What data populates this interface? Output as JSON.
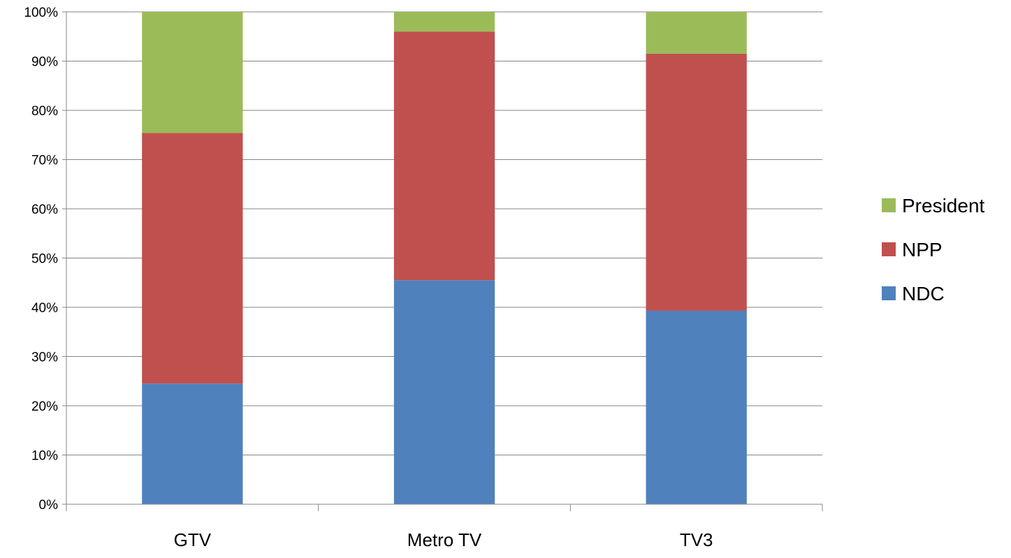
{
  "chart_data": {
    "type": "bar",
    "stacked": true,
    "percent_stacked": true,
    "categories": [
      "GTV",
      "Metro TV",
      "TV3"
    ],
    "series": [
      {
        "name": "NDC",
        "color": "#4F81BD",
        "values": [
          24.5,
          45.5,
          39.3
        ]
      },
      {
        "name": "NPP",
        "color": "#C0504D",
        "values": [
          50.9,
          50.5,
          52.2
        ]
      },
      {
        "name": "President",
        "color": "#9BBB59",
        "values": [
          24.6,
          4.0,
          8.5
        ]
      }
    ],
    "ylim": [
      0,
      100
    ],
    "y_ticks": [
      "0%",
      "10%",
      "20%",
      "30%",
      "40%",
      "50%",
      "60%",
      "70%",
      "80%",
      "90%",
      "100%"
    ],
    "grid": true,
    "legend_position": "right",
    "legend_order": [
      "President",
      "NPP",
      "NDC"
    ],
    "title": "",
    "xlabel": "",
    "ylabel": ""
  }
}
